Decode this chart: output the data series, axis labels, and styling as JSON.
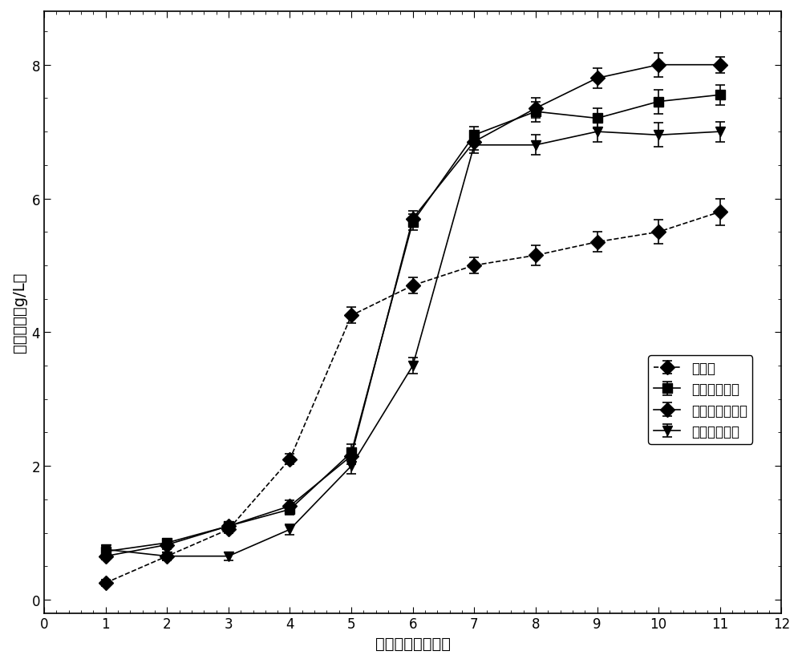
{
  "x": [
    1,
    2,
    3,
    4,
    5,
    6,
    7,
    8,
    9,
    10,
    11
  ],
  "series": {
    "distilled_water": {
      "label": "蒸馏水",
      "y": [
        0.25,
        0.65,
        1.05,
        2.1,
        4.25,
        4.7,
        5.0,
        5.15,
        5.35,
        5.5,
        5.8
      ],
      "yerr": [
        0.05,
        0.06,
        0.06,
        0.08,
        0.12,
        0.12,
        0.12,
        0.15,
        0.15,
        0.18,
        0.2
      ],
      "marker": "D",
      "linestyle": "--"
    },
    "fermentation_original": {
      "label": "发酵滤液原液",
      "y": [
        0.72,
        0.85,
        1.1,
        1.35,
        2.2,
        5.65,
        6.95,
        7.3,
        7.2,
        7.45,
        7.55
      ],
      "yerr": [
        0.05,
        0.06,
        0.06,
        0.08,
        0.12,
        0.12,
        0.12,
        0.15,
        0.15,
        0.18,
        0.15
      ],
      "marker": "s",
      "linestyle": "-"
    },
    "decolorized": {
      "label": "脱色后发酵滤液",
      "y": [
        0.65,
        0.82,
        1.1,
        1.4,
        2.15,
        5.7,
        6.85,
        7.35,
        7.8,
        8.0,
        8.0
      ],
      "yerr": [
        0.05,
        0.06,
        0.06,
        0.08,
        0.12,
        0.12,
        0.12,
        0.15,
        0.15,
        0.18,
        0.12
      ],
      "marker": "D",
      "linestyle": "-"
    },
    "electrodialysis": {
      "label": "电渗析后淡水",
      "y": [
        0.75,
        0.65,
        0.65,
        1.05,
        2.0,
        3.5,
        6.8,
        6.8,
        7.0,
        6.95,
        7.0
      ],
      "yerr": [
        0.05,
        0.06,
        0.06,
        0.08,
        0.12,
        0.12,
        0.12,
        0.15,
        0.15,
        0.18,
        0.15
      ],
      "marker": "v",
      "linestyle": "-"
    }
  },
  "xlabel": "培养时间（小时）",
  "ylabel": "细胞干重（g/L）",
  "xlim": [
    0,
    12
  ],
  "ylim": [
    -0.2,
    8.8
  ],
  "xticks": [
    0,
    1,
    2,
    3,
    4,
    5,
    6,
    7,
    8,
    9,
    10,
    11,
    12
  ],
  "yticks": [
    0,
    2,
    4,
    6,
    8
  ],
  "background_color": "#ffffff",
  "line_color": "#000000"
}
